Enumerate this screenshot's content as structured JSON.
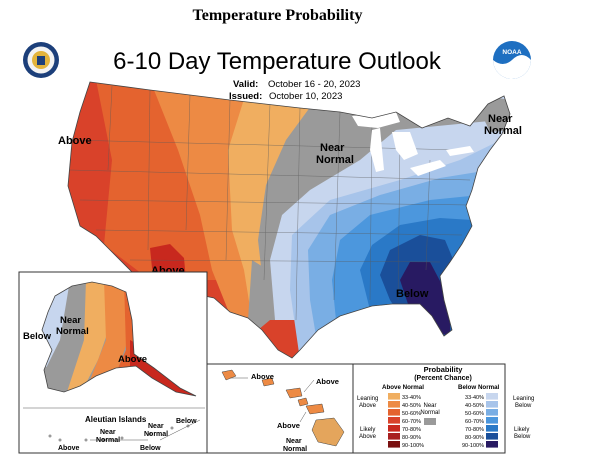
{
  "page_title": "Temperature Probability",
  "map": {
    "title": "6-10 Day Temperature Outlook",
    "valid_label": "Valid:",
    "valid_dates": "October 16 - 20, 2023",
    "issued_label": "Issued:",
    "issued_date": "October 10, 2023",
    "noaa_logo_text": "NOAA",
    "region_labels": {
      "west_above": "Above",
      "southwest_above": "Above",
      "north_central_near": "Near",
      "north_central_normal": "Normal",
      "northeast_near": "Near",
      "northeast_normal": "Normal",
      "southeast_below": "Below",
      "alaska_below": "Below",
      "alaska_near": "Near",
      "alaska_normal": "Normal",
      "alaska_above": "Above",
      "aleutian_title": "Aleutian Islands",
      "aleutian_above": "Above",
      "aleutian_near1": "Near",
      "aleutian_normal1": "Normal",
      "aleutian_near2": "Near",
      "aleutian_normal2": "Normal",
      "aleutian_below1": "Below",
      "aleutian_below2": "Below",
      "hawaii_above1": "Above",
      "hawaii_above2": "Above",
      "hawaii_above3": "Above",
      "hawaii_near": "Near",
      "hawaii_normal": "Normal"
    },
    "colors": {
      "above_90": "#7a1010",
      "above_80": "#a81f1f",
      "above_70": "#c8281e",
      "above_60": "#d9422a",
      "above_50": "#e4632f",
      "above_40": "#ed8a44",
      "above_33": "#f0ae60",
      "near_normal": "#9a9a9a",
      "below_33": "#c7d6ee",
      "below_40": "#a7c4ea",
      "below_50": "#79aee4",
      "below_60": "#4c97dd",
      "below_70": "#2a79c7",
      "below_80": "#1a4f9a",
      "below_90": "#281a62"
    }
  },
  "legend": {
    "title": "Probability",
    "subtitle": "(Percent Chance)",
    "above_header": "Above Normal",
    "below_header": "Below Normal",
    "near_label_1": "Near",
    "near_label_2": "Normal",
    "above_ranges": [
      "33-40%",
      "40-50%",
      "50-60%",
      "60-70%",
      "70-80%",
      "80-90%",
      "90-100%"
    ],
    "below_ranges": [
      "33-40%",
      "40-50%",
      "50-60%",
      "60-70%",
      "70-80%",
      "80-90%",
      "90-100%"
    ],
    "leaning_above_1": "Leaning",
    "leaning_above_2": "Above",
    "likely_above_1": "Likely",
    "likely_above_2": "Above",
    "leaning_below_1": "Leaning",
    "leaning_below_2": "Below",
    "likely_below_1": "Likely",
    "likely_below_2": "Below"
  }
}
